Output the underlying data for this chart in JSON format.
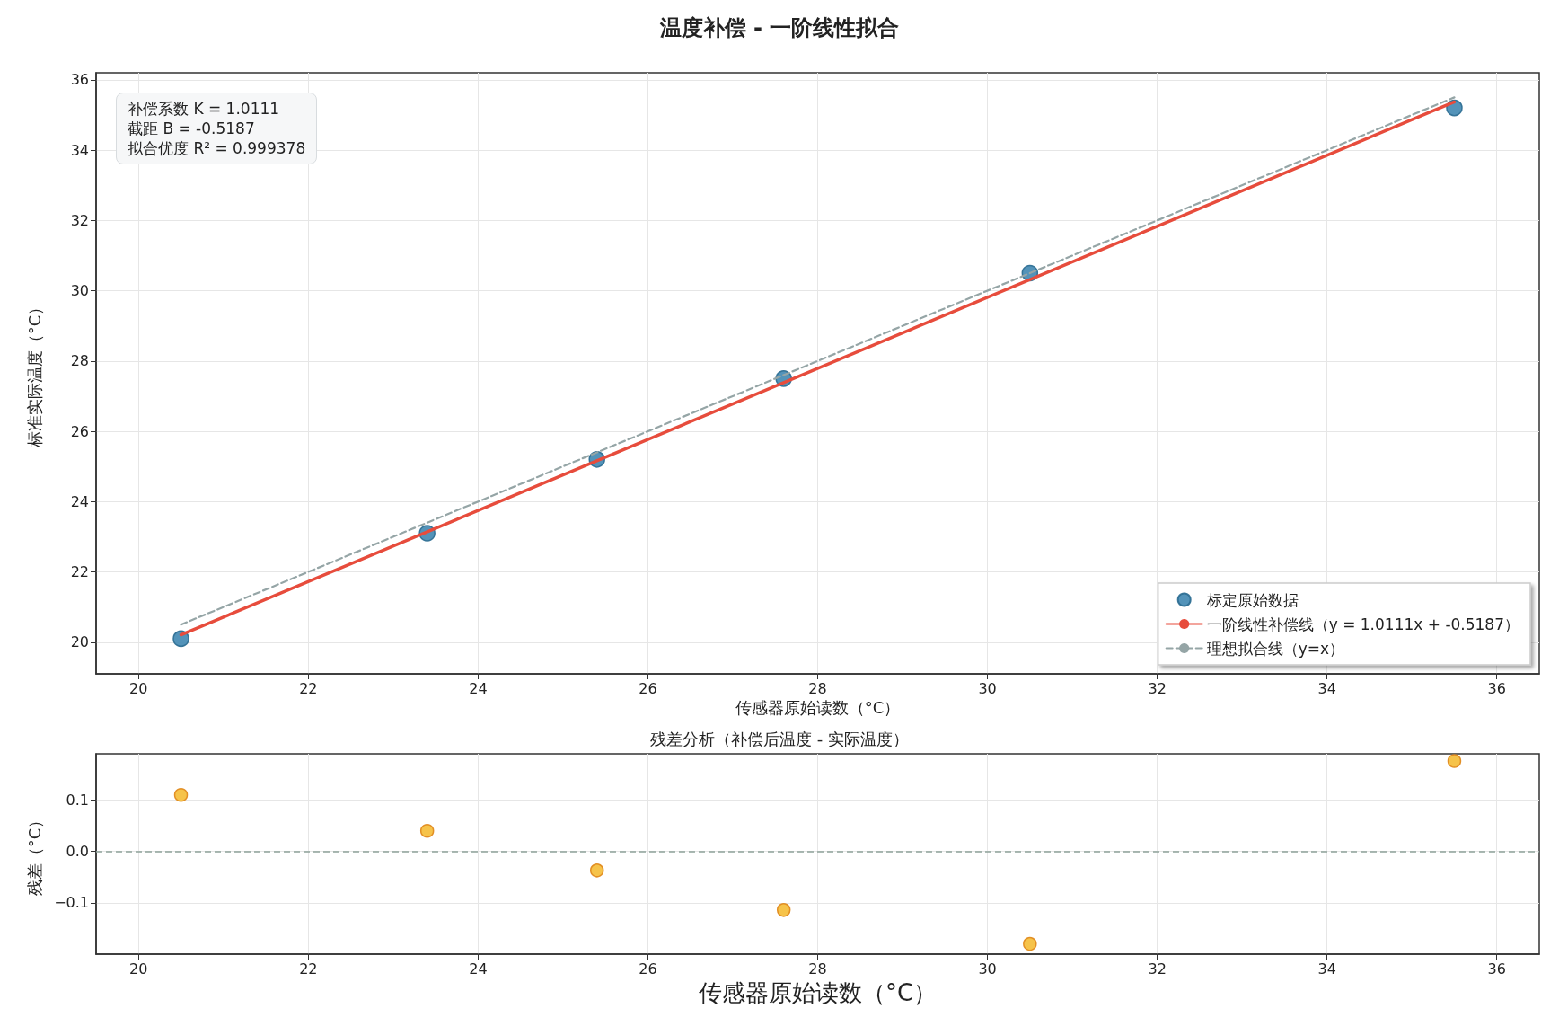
{
  "chart_data": [
    {
      "type": "scatter",
      "title": "温度补偿 - 一阶线性拟合",
      "xlabel": "传感器原始读数（°C）",
      "ylabel": "标准实际温度（°C）",
      "annotations": [
        "补偿系数 K = 1.0111",
        "截距 B = -0.5187",
        "拟合优度 R² = 0.999378"
      ],
      "series": [
        {
          "name": "标定原始数据",
          "marker": "circle",
          "color": "#4a8db5",
          "x": [
            20.5,
            23.4,
            25.4,
            27.6,
            30.5,
            35.5
          ],
          "values": [
            20.1,
            23.1,
            25.2,
            27.5,
            30.5,
            35.2
          ]
        },
        {
          "name": "一阶线性补偿线（y = 1.0111x + -0.5187）",
          "type": "line",
          "marker": "none",
          "line_style": "solid",
          "color": "#e74c3c",
          "x": [
            20.5,
            35.5
          ],
          "values": [
            20.21,
            35.37
          ]
        },
        {
          "name": "理想拟合线（y=x）",
          "type": "line",
          "marker": "none",
          "line_style": "dashed",
          "color": "#95a5a6",
          "x": [
            20.5,
            35.5
          ],
          "values": [
            20.5,
            35.5
          ]
        }
      ],
      "xlim": [
        19.5,
        36.5
      ],
      "xticks": [
        20,
        22,
        24,
        26,
        28,
        30,
        32,
        34,
        36
      ],
      "ylim": [
        19.1,
        36.2
      ],
      "yticks": [
        20,
        22,
        24,
        26,
        28,
        30,
        32,
        34,
        36
      ],
      "grid": true,
      "legend": "bottom right"
    },
    {
      "type": "scatter",
      "title": "残差分析（补偿后温度 - 实际温度）",
      "xlabel": "传感器原始读数（°C）",
      "ylabel": "残差（°C）",
      "series": [
        {
          "marker": "circle",
          "color": "#f5c040",
          "x": [
            20.5,
            23.4,
            25.4,
            27.6,
            30.5,
            35.5
          ],
          "values": [
            0.11,
            0.04,
            -0.037,
            -0.114,
            -0.18,
            0.176
          ]
        }
      ],
      "ref_lines": [
        {
          "axis": "y",
          "value": 0,
          "color": "#8fa39b",
          "line_style": "dashed"
        }
      ],
      "xlim": [
        19.5,
        36.5
      ],
      "xticks": [
        20,
        22,
        24,
        26,
        28,
        30,
        32,
        34,
        36
      ],
      "ylim": [
        -0.2,
        0.19
      ],
      "yticks": [
        {
          "value": -0.1,
          "label": "−0.1"
        },
        {
          "value": 0,
          "label": "0.0"
        },
        {
          "value": 0.1,
          "label": "0.1"
        }
      ],
      "grid": true,
      "legend": false
    }
  ]
}
